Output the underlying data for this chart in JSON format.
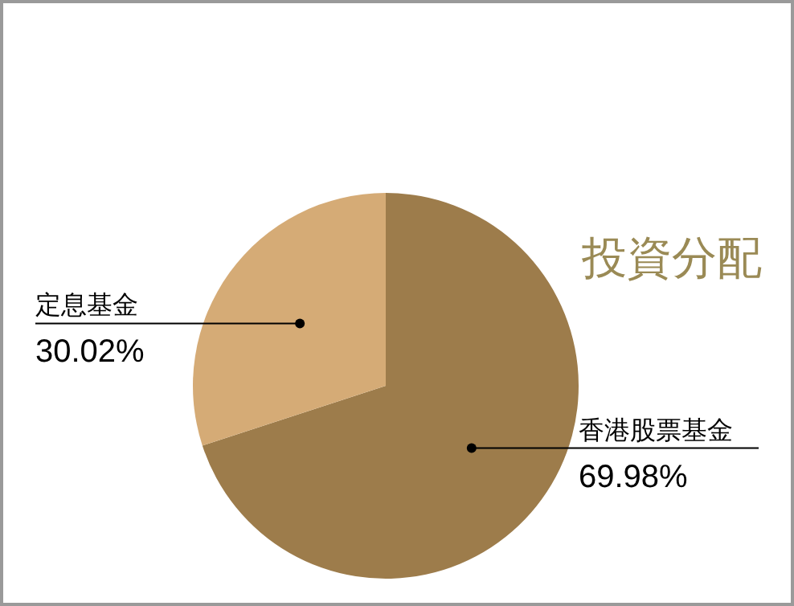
{
  "chart_data": {
    "type": "pie",
    "title": "投資分配",
    "categories": [
      "香港股票基金",
      "定息基金"
    ],
    "values": [
      69.98,
      30.02
    ],
    "colors": [
      "#9d7c4b",
      "#d5ab76"
    ],
    "value_labels": [
      "69.98%",
      "30.02%"
    ]
  }
}
